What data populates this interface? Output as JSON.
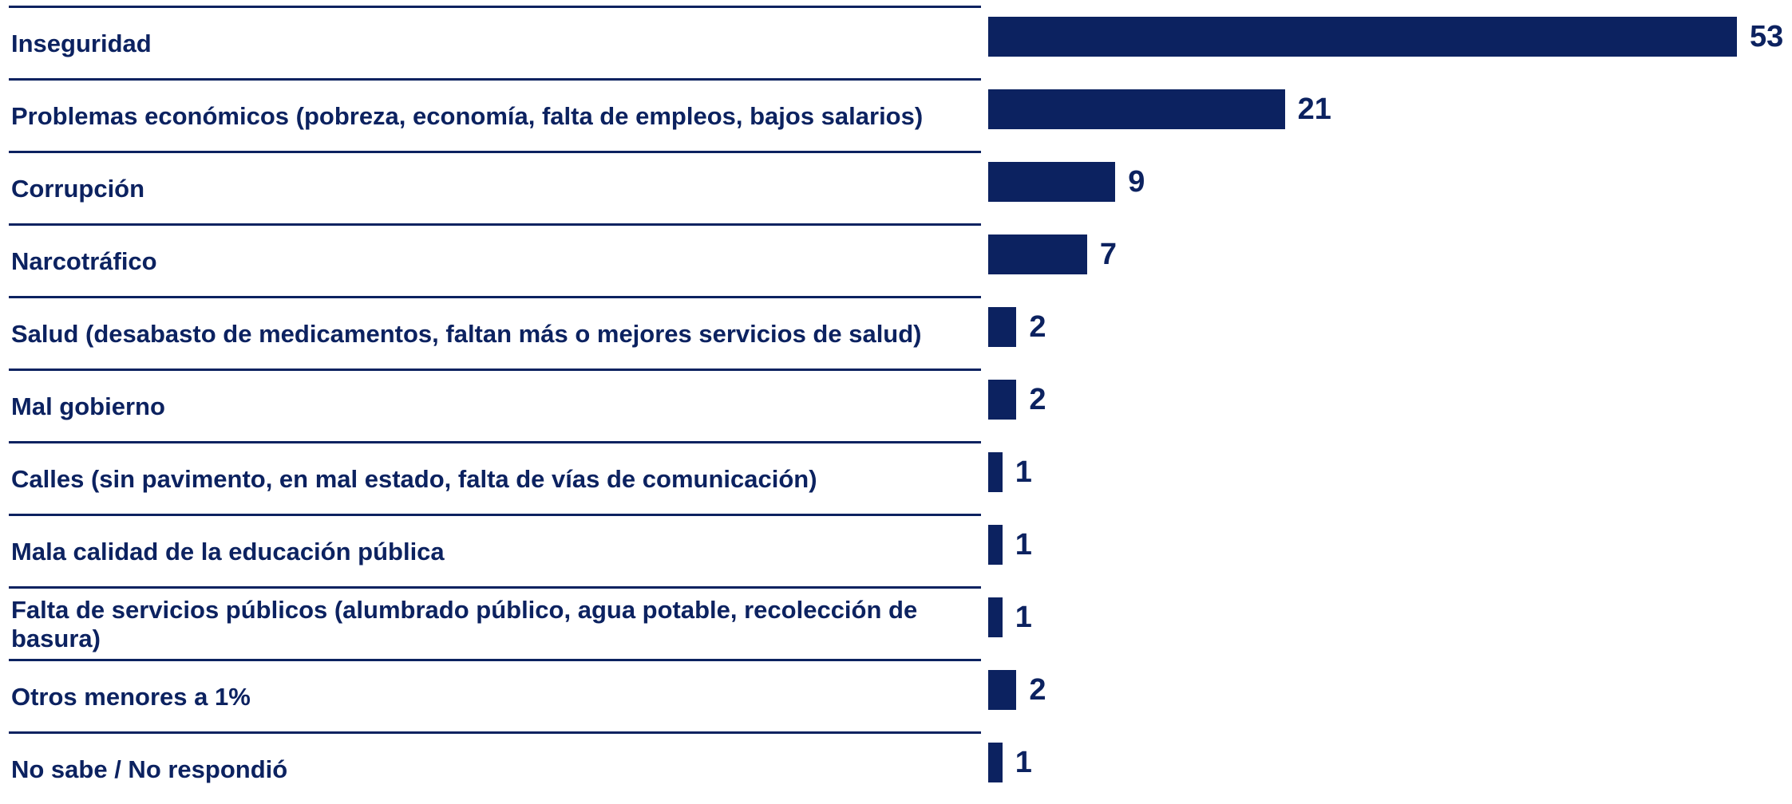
{
  "chart_data": {
    "type": "bar",
    "orientation": "horizontal",
    "categories": [
      "Inseguridad",
      "Problemas económicos (pobreza, economía, falta de empleos, bajos salarios)",
      "Corrupción",
      "Narcotráfico",
      "Salud (desabasto de medicamentos, faltan más o mejores servicios de salud)",
      "Mal gobierno",
      "Calles (sin pavimento, en mal estado, falta de vías de comunicación)",
      "Mala calidad de la educación pública",
      "Falta de servicios públicos (alumbrado público, agua potable, recolección de basura)",
      "Otros menores a 1%",
      "No sabe / No respondió"
    ],
    "values": [
      53,
      21,
      9,
      7,
      2,
      2,
      1,
      1,
      1,
      2,
      1
    ],
    "color": "#0c2260"
  }
}
